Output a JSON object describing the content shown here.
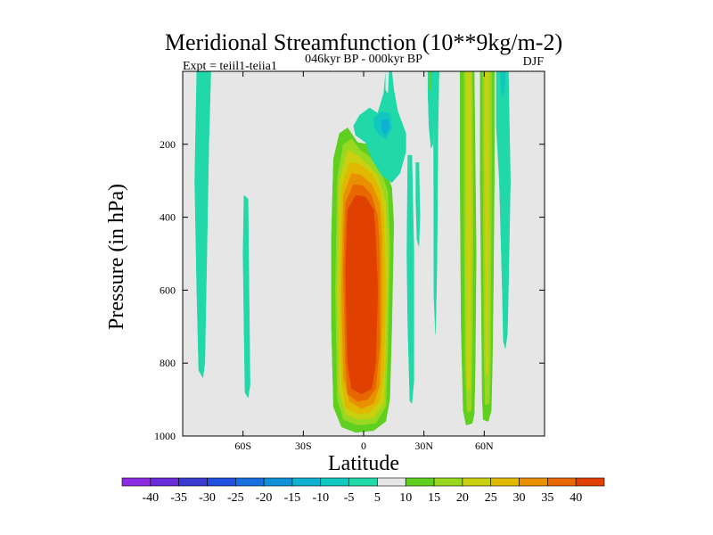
{
  "chart_data": {
    "type": "heatmap",
    "title": "Meridional Streamfunction (10**9kg/m-2)",
    "subtitle": "046kyr BP - 000kyr BP",
    "left_label": "Expt = teiil1-teiia1",
    "right_label": "DJF",
    "xlabel": "Latitude",
    "ylabel": "Pressure (in hPa)",
    "xlim": [
      -90,
      90
    ],
    "ylim": [
      0,
      1000
    ],
    "x_ticks": [
      {
        "value": -60,
        "label": "60S"
      },
      {
        "value": -30,
        "label": "30S"
      },
      {
        "value": 0,
        "label": "0"
      },
      {
        "value": 30,
        "label": "30N"
      },
      {
        "value": 60,
        "label": "60N"
      }
    ],
    "y_ticks": [
      {
        "value": 200,
        "label": "200"
      },
      {
        "value": 400,
        "label": "400"
      },
      {
        "value": 600,
        "label": "600"
      },
      {
        "value": 800,
        "label": "800"
      },
      {
        "value": 1000,
        "label": "1000"
      }
    ],
    "background_color": "#e6e6e6",
    "colorbar": {
      "levels": [
        -40,
        -35,
        -30,
        -25,
        -20,
        -15,
        -10,
        -5,
        5,
        10,
        15,
        20,
        25,
        30,
        35,
        40
      ],
      "labels": [
        "-40",
        "-35",
        "-30",
        "-25",
        "-20",
        "-15",
        "-10",
        "-5",
        "5",
        "10",
        "15",
        "20",
        "25",
        "30",
        "35",
        "40"
      ],
      "colors": [
        "#8a2be2",
        "#6a2cd8",
        "#3a3ad0",
        "#2050e0",
        "#1870e0",
        "#1090d8",
        "#10b0d0",
        "#10c8c0",
        "#20d8a8",
        "#e6e6e6",
        "#60d020",
        "#98d820",
        "#c8d010",
        "#e0b800",
        "#e89000",
        "#e86800",
        "#e04000"
      ]
    },
    "contour_regions": [
      {
        "level": 10,
        "color": "#60d020",
        "points": [
          [
            -15,
            240
          ],
          [
            -12,
            170
          ],
          [
            -8,
            155
          ],
          [
            -3,
            195
          ],
          [
            2,
            200
          ],
          [
            5,
            185
          ],
          [
            8,
            200
          ],
          [
            11,
            270
          ],
          [
            14,
            320
          ],
          [
            15,
            420
          ],
          [
            14,
            700
          ],
          [
            13,
            900
          ],
          [
            11,
            960
          ],
          [
            5,
            985
          ],
          [
            -4,
            990
          ],
          [
            -11,
            975
          ],
          [
            -15,
            920
          ],
          [
            -16,
            700
          ],
          [
            -16,
            450
          ]
        ]
      },
      {
        "level": 15,
        "color": "#98d820",
        "points": [
          [
            -13,
            290
          ],
          [
            -10,
            200
          ],
          [
            -6,
            185
          ],
          [
            -2,
            215
          ],
          [
            3,
            235
          ],
          [
            8,
            265
          ],
          [
            12,
            330
          ],
          [
            13,
            480
          ],
          [
            12,
            760
          ],
          [
            11,
            920
          ],
          [
            6,
            965
          ],
          [
            -3,
            970
          ],
          [
            -10,
            955
          ],
          [
            -13,
            900
          ],
          [
            -14,
            600
          ]
        ]
      },
      {
        "level": 20,
        "color": "#c8d010",
        "points": [
          [
            -12,
            300
          ],
          [
            -8,
            215
          ],
          [
            -3,
            230
          ],
          [
            2,
            255
          ],
          [
            7,
            285
          ],
          [
            11,
            360
          ],
          [
            12,
            500
          ],
          [
            11,
            780
          ],
          [
            10,
            910
          ],
          [
            5,
            950
          ],
          [
            -3,
            955
          ],
          [
            -9,
            940
          ],
          [
            -12,
            880
          ],
          [
            -13,
            600
          ]
        ]
      },
      {
        "level": 25,
        "color": "#e0b800",
        "points": [
          [
            -11,
            320
          ],
          [
            -7,
            250
          ],
          [
            -2,
            255
          ],
          [
            4,
            280
          ],
          [
            8,
            320
          ],
          [
            10,
            400
          ],
          [
            11,
            600
          ],
          [
            10,
            820
          ],
          [
            8,
            905
          ],
          [
            3,
            935
          ],
          [
            -3,
            940
          ],
          [
            -9,
            920
          ],
          [
            -11,
            850
          ],
          [
            -12,
            600
          ]
        ]
      },
      {
        "level": 30,
        "color": "#e89000",
        "points": [
          [
            -10,
            340
          ],
          [
            -6,
            280
          ],
          [
            -1,
            285
          ],
          [
            4,
            310
          ],
          [
            8,
            360
          ],
          [
            9,
            450
          ],
          [
            9,
            700
          ],
          [
            8,
            860
          ],
          [
            5,
            910
          ],
          [
            -1,
            925
          ],
          [
            -7,
            905
          ],
          [
            -10,
            840
          ],
          [
            -11,
            600
          ]
        ]
      },
      {
        "level": 35,
        "color": "#e86800",
        "points": [
          [
            -9,
            360
          ],
          [
            -5,
            310
          ],
          [
            0,
            315
          ],
          [
            4,
            340
          ],
          [
            7,
            400
          ],
          [
            8,
            500
          ],
          [
            8,
            750
          ],
          [
            6,
            870
          ],
          [
            2,
            900
          ],
          [
            -3,
            905
          ],
          [
            -8,
            885
          ],
          [
            -9,
            800
          ],
          [
            -10,
            550
          ]
        ]
      },
      {
        "level": 40,
        "color": "#e04000",
        "points": [
          [
            -8,
            380
          ],
          [
            -4,
            340
          ],
          [
            1,
            345
          ],
          [
            5,
            380
          ],
          [
            6,
            460
          ],
          [
            7,
            600
          ],
          [
            6,
            800
          ],
          [
            4,
            870
          ],
          [
            -1,
            885
          ],
          [
            -6,
            870
          ],
          [
            -8,
            800
          ],
          [
            -9,
            550
          ]
        ]
      },
      {
        "level": 10,
        "color": "#60d020",
        "points": [
          [
            48,
            0
          ],
          [
            55,
            0
          ],
          [
            56,
            500
          ],
          [
            55.5,
            800
          ],
          [
            55,
            940
          ],
          [
            54,
            965
          ],
          [
            51,
            970
          ],
          [
            49.5,
            930
          ],
          [
            48.5,
            700
          ],
          [
            48,
            300
          ]
        ]
      },
      {
        "level": 15,
        "color": "#98d820",
        "points": [
          [
            50,
            0
          ],
          [
            54,
            0
          ],
          [
            54.5,
            400
          ],
          [
            54,
            800
          ],
          [
            53.5,
            930
          ],
          [
            51.5,
            935
          ],
          [
            50.5,
            800
          ],
          [
            50,
            400
          ]
        ]
      },
      {
        "level": 20,
        "color": "#c8d010",
        "points": [
          [
            51,
            0
          ],
          [
            53.3,
            0
          ],
          [
            53.5,
            500
          ],
          [
            53,
            870
          ],
          [
            51.5,
            875
          ],
          [
            51,
            500
          ]
        ]
      },
      {
        "level": 10,
        "color": "#60d020",
        "points": [
          [
            58,
            0
          ],
          [
            65,
            0
          ],
          [
            65,
            300
          ],
          [
            64.5,
            600
          ],
          [
            64,
            800
          ],
          [
            63.5,
            930
          ],
          [
            62,
            960
          ],
          [
            59.5,
            955
          ],
          [
            59,
            900
          ],
          [
            58.5,
            600
          ],
          [
            58,
            300
          ]
        ]
      },
      {
        "level": 15,
        "color": "#98d820",
        "points": [
          [
            59.3,
            0
          ],
          [
            63.6,
            0
          ],
          [
            63.5,
            400
          ],
          [
            63,
            800
          ],
          [
            62.5,
            910
          ],
          [
            60.5,
            915
          ],
          [
            60,
            800
          ],
          [
            59.5,
            400
          ]
        ]
      },
      {
        "level": 20,
        "color": "#c8d010",
        "points": [
          [
            60.3,
            0
          ],
          [
            62.3,
            0
          ],
          [
            62.2,
            500
          ],
          [
            62,
            830
          ],
          [
            60.8,
            835
          ],
          [
            60.5,
            500
          ]
        ]
      },
      {
        "level": -5,
        "color": "#20d8a8",
        "points": [
          [
            -83,
            0
          ],
          [
            -76,
            0
          ],
          [
            -77,
            200
          ],
          [
            -78,
            500
          ],
          [
            -79,
            800
          ],
          [
            -80,
            840
          ],
          [
            -82,
            820
          ],
          [
            -83,
            600
          ],
          [
            -84,
            300
          ]
        ]
      },
      {
        "level": -5,
        "color": "#20d8a8",
        "points": [
          [
            -59.5,
            340
          ],
          [
            -57.5,
            350
          ],
          [
            -57,
            600
          ],
          [
            -56.5,
            860
          ],
          [
            -57.5,
            895
          ],
          [
            -59,
            880
          ],
          [
            -59.5,
            700
          ],
          [
            -60,
            500
          ]
        ]
      },
      {
        "level": -5,
        "color": "#20d8a8",
        "points": [
          [
            -5,
            150
          ],
          [
            -2,
            120
          ],
          [
            3,
            100
          ],
          [
            7,
            115
          ],
          [
            10,
            60
          ],
          [
            11,
            0
          ],
          [
            14,
            0
          ],
          [
            15,
            50
          ],
          [
            17,
            110
          ],
          [
            21,
            170
          ],
          [
            21,
            220
          ],
          [
            18,
            280
          ],
          [
            14,
            305
          ],
          [
            9,
            285
          ],
          [
            4,
            240
          ],
          [
            1,
            195
          ],
          [
            -4,
            175
          ]
        ]
      },
      {
        "level": -10,
        "color": "#10c8c0",
        "points": [
          [
            5,
            130
          ],
          [
            9,
            110
          ],
          [
            13,
            115
          ],
          [
            14,
            155
          ],
          [
            11,
            185
          ],
          [
            7,
            170
          ],
          [
            5,
            150
          ]
        ]
      },
      {
        "level": -15,
        "color": "#10b0d0",
        "points": [
          [
            9,
            135
          ],
          [
            12,
            130
          ],
          [
            13,
            150
          ],
          [
            11,
            175
          ],
          [
            9,
            160
          ]
        ]
      },
      {
        "level": -5,
        "color": "#20d8a8",
        "points": [
          [
            22,
            230
          ],
          [
            24,
            230
          ],
          [
            25,
            500
          ],
          [
            25,
            850
          ],
          [
            24,
            910
          ],
          [
            23,
            905
          ],
          [
            22,
            700
          ],
          [
            21.5,
            500
          ]
        ]
      },
      {
        "level": -5,
        "color": "#20d8a8",
        "points": [
          [
            26,
            250
          ],
          [
            27.5,
            250
          ],
          [
            28,
            400
          ],
          [
            27.5,
            480
          ],
          [
            26.5,
            460
          ],
          [
            26,
            350
          ]
        ]
      },
      {
        "level": -5,
        "color": "#20d8a8",
        "points": [
          [
            32,
            0
          ],
          [
            35,
            0
          ],
          [
            35,
            100
          ],
          [
            34.5,
            200
          ],
          [
            33.5,
            210
          ],
          [
            32.5,
            150
          ],
          [
            32,
            60
          ]
        ]
      },
      {
        "level": -5,
        "color": "#20d8a8",
        "points": [
          [
            35,
            0
          ],
          [
            37.5,
            0
          ],
          [
            37,
            150
          ],
          [
            36.5,
            520
          ],
          [
            35.8,
            720
          ],
          [
            35,
            620
          ],
          [
            34.8,
            200
          ]
        ]
      },
      {
        "level": -5,
        "color": "#20d8a8",
        "points": [
          [
            66,
            0
          ],
          [
            72,
            0
          ],
          [
            73,
            300
          ],
          [
            72,
            600
          ],
          [
            71.5,
            720
          ],
          [
            70.5,
            760
          ],
          [
            69.5,
            740
          ],
          [
            69,
            600
          ],
          [
            67.5,
            300
          ],
          [
            66,
            150
          ]
        ]
      },
      {
        "level": -10,
        "color": "#10c8c0",
        "points": [
          [
            68,
            0
          ],
          [
            70.5,
            0
          ],
          [
            70,
            60
          ],
          [
            69,
            70
          ],
          [
            68.3,
            40
          ]
        ]
      },
      {
        "level": 5,
        "color": "#e6e6e6",
        "points": [
          [
            11,
            0
          ],
          [
            12.5,
            0
          ],
          [
            12,
            60
          ],
          [
            11,
            50
          ]
        ]
      },
      {
        "level": 10,
        "color": "#60d020",
        "points": [
          [
            32.5,
            0
          ],
          [
            33.6,
            0
          ],
          [
            33.5,
            50
          ],
          [
            32.8,
            50
          ]
        ]
      }
    ]
  }
}
